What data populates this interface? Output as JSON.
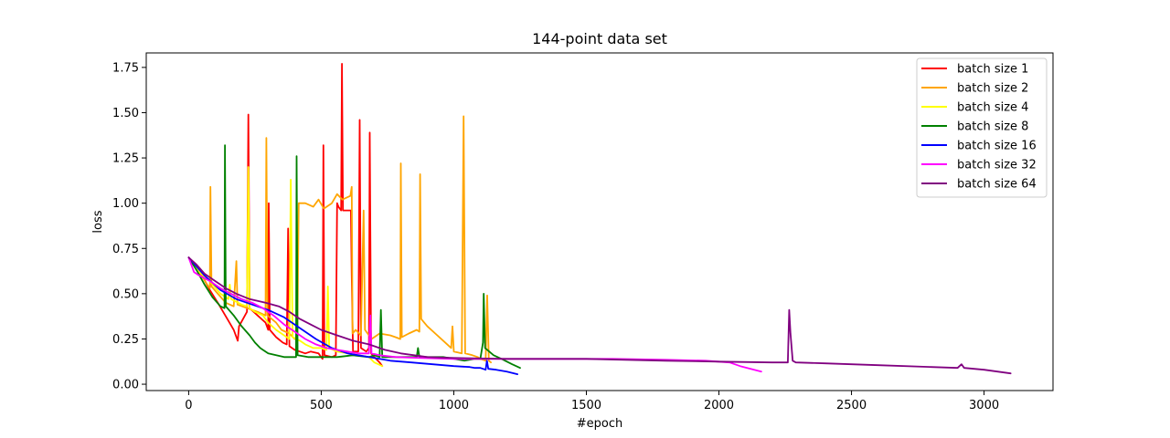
{
  "chart_data": {
    "type": "line",
    "title": "144-point data set",
    "xlabel": "#epoch",
    "ylabel": "loss",
    "xlim": [
      -160,
      3260
    ],
    "ylim": [
      -0.035,
      1.83
    ],
    "xticks": [
      0,
      500,
      1000,
      1500,
      2000,
      2500,
      3000
    ],
    "yticks": [
      0.0,
      0.25,
      0.5,
      0.75,
      1.0,
      1.25,
      1.5,
      1.75
    ],
    "ytick_labels": [
      "0.00",
      "0.25",
      "0.50",
      "0.75",
      "1.00",
      "1.25",
      "1.50",
      "1.75"
    ],
    "grid": false,
    "legend_position": "top-right",
    "series": [
      {
        "name": "batch size 1",
        "color": "#ff0000",
        "points": [
          [
            0,
            0.7
          ],
          [
            40,
            0.63
          ],
          [
            80,
            0.52
          ],
          [
            110,
            0.45
          ],
          [
            130,
            0.4
          ],
          [
            150,
            0.35
          ],
          [
            170,
            0.3
          ],
          [
            185,
            0.24
          ],
          [
            190,
            0.32
          ],
          [
            220,
            0.4
          ],
          [
            225,
            1.49
          ],
          [
            230,
            0.42
          ],
          [
            260,
            0.38
          ],
          [
            290,
            0.34
          ],
          [
            300,
            0.3
          ],
          [
            302,
            1.0
          ],
          [
            306,
            0.3
          ],
          [
            330,
            0.26
          ],
          [
            355,
            0.23
          ],
          [
            370,
            0.22
          ],
          [
            375,
            0.86
          ],
          [
            380,
            0.21
          ],
          [
            400,
            0.19
          ],
          [
            420,
            0.18
          ],
          [
            440,
            0.17
          ],
          [
            460,
            0.18
          ],
          [
            490,
            0.17
          ],
          [
            505,
            0.14
          ],
          [
            508,
            1.32
          ],
          [
            512,
            0.16
          ],
          [
            540,
            0.15
          ],
          [
            555,
            0.16
          ],
          [
            560,
            1.0
          ],
          [
            565,
            0.98
          ],
          [
            575,
            0.96
          ],
          [
            578,
            1.77
          ],
          [
            582,
            0.96
          ],
          [
            600,
            0.96
          ],
          [
            612,
            0.96
          ],
          [
            615,
            0.6
          ],
          [
            620,
            0.18
          ],
          [
            640,
            0.18
          ],
          [
            645,
            1.46
          ],
          [
            650,
            0.2
          ],
          [
            670,
            0.18
          ],
          [
            680,
            0.2
          ],
          [
            683,
            1.39
          ],
          [
            688,
            0.17
          ],
          [
            700,
            0.15
          ],
          [
            720,
            0.12
          ],
          [
            730,
            0.1
          ]
        ]
      },
      {
        "name": "batch size 2",
        "color": "#ffa500",
        "points": [
          [
            0,
            0.7
          ],
          [
            40,
            0.62
          ],
          [
            70,
            0.55
          ],
          [
            80,
            0.53
          ],
          [
            82,
            1.09
          ],
          [
            86,
            0.54
          ],
          [
            110,
            0.5
          ],
          [
            140,
            0.45
          ],
          [
            170,
            0.43
          ],
          [
            180,
            0.68
          ],
          [
            184,
            0.44
          ],
          [
            220,
            0.42
          ],
          [
            260,
            0.4
          ],
          [
            290,
            0.38
          ],
          [
            293,
            1.36
          ],
          [
            297,
            0.38
          ],
          [
            330,
            0.34
          ],
          [
            350,
            0.3
          ],
          [
            380,
            0.28
          ],
          [
            400,
            0.25
          ],
          [
            410,
            0.27
          ],
          [
            415,
            1.0
          ],
          [
            440,
            1.0
          ],
          [
            470,
            0.98
          ],
          [
            490,
            1.02
          ],
          [
            510,
            0.97
          ],
          [
            540,
            1.0
          ],
          [
            560,
            1.05
          ],
          [
            580,
            1.02
          ],
          [
            610,
            1.04
          ],
          [
            615,
            1.09
          ],
          [
            618,
            0.28
          ],
          [
            630,
            0.3
          ],
          [
            650,
            0.27
          ],
          [
            660,
            0.96
          ],
          [
            665,
            0.3
          ],
          [
            690,
            0.25
          ],
          [
            720,
            0.28
          ],
          [
            760,
            0.27
          ],
          [
            780,
            0.26
          ],
          [
            798,
            0.25
          ],
          [
            800,
            1.22
          ],
          [
            804,
            0.26
          ],
          [
            830,
            0.28
          ],
          [
            860,
            0.3
          ],
          [
            870,
            0.29
          ],
          [
            873,
            1.16
          ],
          [
            877,
            0.36
          ],
          [
            900,
            0.32
          ],
          [
            930,
            0.28
          ],
          [
            960,
            0.24
          ],
          [
            990,
            0.2
          ],
          [
            995,
            0.32
          ],
          [
            1000,
            0.18
          ],
          [
            1030,
            0.17
          ],
          [
            1037,
            1.48
          ],
          [
            1043,
            0.17
          ],
          [
            1070,
            0.16
          ],
          [
            1090,
            0.15
          ],
          [
            1100,
            0.14
          ],
          [
            1120,
            0.13
          ],
          [
            1126,
            0.49
          ],
          [
            1132,
            0.13
          ],
          [
            1140,
            0.12
          ]
        ]
      },
      {
        "name": "batch size 4",
        "color": "#ffff00",
        "points": [
          [
            0,
            0.7
          ],
          [
            40,
            0.62
          ],
          [
            80,
            0.57
          ],
          [
            120,
            0.5
          ],
          [
            150,
            0.47
          ],
          [
            155,
            0.55
          ],
          [
            160,
            0.47
          ],
          [
            200,
            0.44
          ],
          [
            220,
            0.43
          ],
          [
            225,
            1.2
          ],
          [
            230,
            0.42
          ],
          [
            250,
            0.4
          ],
          [
            280,
            0.38
          ],
          [
            300,
            0.34
          ],
          [
            330,
            0.3
          ],
          [
            360,
            0.27
          ],
          [
            380,
            0.25
          ],
          [
            385,
            1.13
          ],
          [
            392,
            0.26
          ],
          [
            420,
            0.24
          ],
          [
            440,
            0.22
          ],
          [
            470,
            0.2
          ],
          [
            500,
            0.2
          ],
          [
            520,
            0.19
          ],
          [
            525,
            0.54
          ],
          [
            530,
            0.2
          ],
          [
            560,
            0.18
          ],
          [
            600,
            0.17
          ],
          [
            640,
            0.16
          ],
          [
            680,
            0.15
          ],
          [
            700,
            0.12
          ],
          [
            730,
            0.1
          ]
        ]
      },
      {
        "name": "batch size 8",
        "color": "#008000",
        "points": [
          [
            0,
            0.7
          ],
          [
            30,
            0.63
          ],
          [
            60,
            0.55
          ],
          [
            90,
            0.48
          ],
          [
            120,
            0.43
          ],
          [
            135,
            0.42
          ],
          [
            137,
            1.32
          ],
          [
            140,
            0.43
          ],
          [
            170,
            0.38
          ],
          [
            200,
            0.32
          ],
          [
            230,
            0.27
          ],
          [
            250,
            0.23
          ],
          [
            270,
            0.2
          ],
          [
            280,
            0.19
          ],
          [
            300,
            0.17
          ],
          [
            330,
            0.16
          ],
          [
            360,
            0.15
          ],
          [
            390,
            0.15
          ],
          [
            405,
            0.15
          ],
          [
            407,
            1.26
          ],
          [
            411,
            0.16
          ],
          [
            450,
            0.15
          ],
          [
            500,
            0.15
          ],
          [
            560,
            0.15
          ],
          [
            620,
            0.16
          ],
          [
            680,
            0.15
          ],
          [
            700,
            0.16
          ],
          [
            720,
            0.15
          ],
          [
            725,
            0.41
          ],
          [
            730,
            0.15
          ],
          [
            780,
            0.15
          ],
          [
            840,
            0.15
          ],
          [
            860,
            0.15
          ],
          [
            865,
            0.2
          ],
          [
            870,
            0.15
          ],
          [
            920,
            0.15
          ],
          [
            960,
            0.15
          ],
          [
            1000,
            0.14
          ],
          [
            1040,
            0.13
          ],
          [
            1080,
            0.14
          ],
          [
            1100,
            0.14
          ],
          [
            1110,
            0.23
          ],
          [
            1113,
            0.5
          ],
          [
            1118,
            0.2
          ],
          [
            1150,
            0.16
          ],
          [
            1180,
            0.14
          ],
          [
            1220,
            0.11
          ],
          [
            1250,
            0.09
          ]
        ]
      },
      {
        "name": "batch size 16",
        "color": "#0000ff",
        "points": [
          [
            0,
            0.7
          ],
          [
            60,
            0.6
          ],
          [
            120,
            0.52
          ],
          [
            180,
            0.47
          ],
          [
            240,
            0.44
          ],
          [
            300,
            0.41
          ],
          [
            360,
            0.37
          ],
          [
            420,
            0.31
          ],
          [
            480,
            0.25
          ],
          [
            540,
            0.2
          ],
          [
            600,
            0.17
          ],
          [
            680,
            0.15
          ],
          [
            760,
            0.13
          ],
          [
            840,
            0.12
          ],
          [
            920,
            0.11
          ],
          [
            1000,
            0.1
          ],
          [
            1060,
            0.095
          ],
          [
            1080,
            0.09
          ],
          [
            1100,
            0.09
          ],
          [
            1120,
            0.08
          ],
          [
            1125,
            0.13
          ],
          [
            1130,
            0.085
          ],
          [
            1160,
            0.08
          ],
          [
            1200,
            0.07
          ],
          [
            1240,
            0.055
          ]
        ]
      },
      {
        "name": "batch size 32",
        "color": "#ff00ff",
        "points": [
          [
            0,
            0.7
          ],
          [
            20,
            0.62
          ],
          [
            40,
            0.6
          ],
          [
            80,
            0.57
          ],
          [
            120,
            0.53
          ],
          [
            160,
            0.5
          ],
          [
            200,
            0.47
          ],
          [
            240,
            0.45
          ],
          [
            280,
            0.42
          ],
          [
            320,
            0.38
          ],
          [
            360,
            0.33
          ],
          [
            400,
            0.29
          ],
          [
            440,
            0.25
          ],
          [
            480,
            0.22
          ],
          [
            520,
            0.2
          ],
          [
            560,
            0.19
          ],
          [
            600,
            0.18
          ],
          [
            640,
            0.17
          ],
          [
            680,
            0.17
          ],
          [
            685,
            0.38
          ],
          [
            690,
            0.17
          ],
          [
            720,
            0.16
          ],
          [
            780,
            0.15
          ],
          [
            880,
            0.145
          ],
          [
            1000,
            0.14
          ],
          [
            1200,
            0.14
          ],
          [
            1400,
            0.14
          ],
          [
            1600,
            0.14
          ],
          [
            1800,
            0.135
          ],
          [
            1950,
            0.13
          ],
          [
            2040,
            0.12
          ],
          [
            2080,
            0.1
          ],
          [
            2120,
            0.085
          ],
          [
            2160,
            0.07
          ]
        ]
      },
      {
        "name": "batch size 64",
        "color": "#800080",
        "points": [
          [
            0,
            0.7
          ],
          [
            30,
            0.66
          ],
          [
            60,
            0.61
          ],
          [
            100,
            0.57
          ],
          [
            140,
            0.53
          ],
          [
            180,
            0.5
          ],
          [
            230,
            0.47
          ],
          [
            290,
            0.45
          ],
          [
            340,
            0.43
          ],
          [
            380,
            0.4
          ],
          [
            420,
            0.36
          ],
          [
            460,
            0.33
          ],
          [
            500,
            0.3
          ],
          [
            560,
            0.27
          ],
          [
            620,
            0.24
          ],
          [
            680,
            0.22
          ],
          [
            740,
            0.19
          ],
          [
            800,
            0.17
          ],
          [
            900,
            0.15
          ],
          [
            1000,
            0.145
          ],
          [
            1200,
            0.14
          ],
          [
            1500,
            0.14
          ],
          [
            1800,
            0.13
          ],
          [
            2000,
            0.125
          ],
          [
            2200,
            0.12
          ],
          [
            2260,
            0.12
          ],
          [
            2265,
            0.41
          ],
          [
            2270,
            0.28
          ],
          [
            2278,
            0.13
          ],
          [
            2290,
            0.12
          ],
          [
            2400,
            0.115
          ],
          [
            2600,
            0.105
          ],
          [
            2800,
            0.095
          ],
          [
            2900,
            0.09
          ],
          [
            2915,
            0.11
          ],
          [
            2925,
            0.09
          ],
          [
            3000,
            0.08
          ],
          [
            3100,
            0.06
          ]
        ]
      }
    ]
  }
}
